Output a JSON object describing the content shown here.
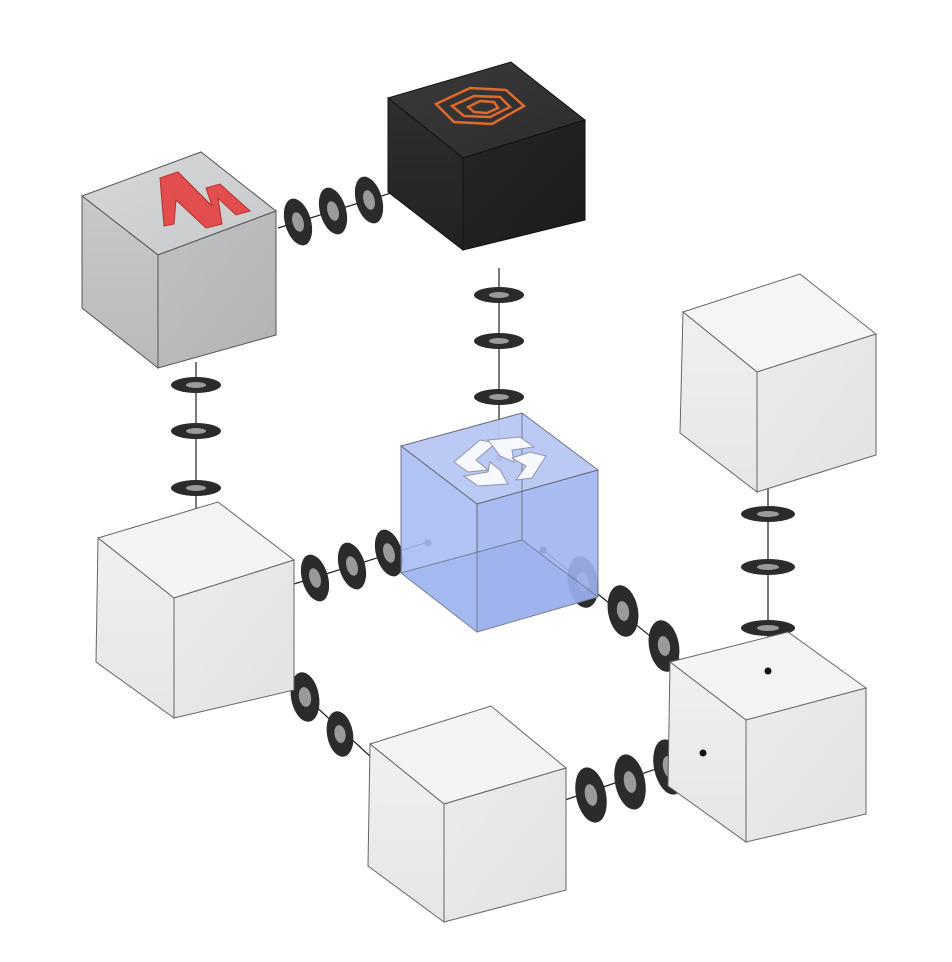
{
  "diagram": {
    "cubes": [
      {
        "id": "grey-logo-cube",
        "style": "grey",
        "logo": "red-v-logo-icon"
      },
      {
        "id": "black-logo-cube",
        "style": "black",
        "logo": "orange-hexagon-logo-icon"
      },
      {
        "id": "blue-center-cube",
        "style": "blue-transparent",
        "logo": "white-chain-logo-icon"
      },
      {
        "id": "white-cube-top-right",
        "style": "white"
      },
      {
        "id": "white-cube-mid-left",
        "style": "white"
      },
      {
        "id": "white-cube-bottom-center",
        "style": "white"
      },
      {
        "id": "white-cube-bottom-right",
        "style": "white"
      }
    ],
    "links": [
      {
        "from": "grey-logo-cube",
        "to": "black-logo-cube"
      },
      {
        "from": "grey-logo-cube",
        "to": "white-cube-mid-left"
      },
      {
        "from": "black-logo-cube",
        "to": "blue-center-cube"
      },
      {
        "from": "white-cube-mid-left",
        "to": "blue-center-cube"
      },
      {
        "from": "blue-center-cube",
        "to": "white-cube-bottom-right"
      },
      {
        "from": "white-cube-top-right",
        "to": "white-cube-bottom-right"
      },
      {
        "from": "white-cube-mid-left",
        "to": "white-cube-bottom-center"
      },
      {
        "from": "white-cube-bottom-center",
        "to": "white-cube-bottom-right"
      }
    ],
    "colors": {
      "white_top": "#f4f4f4",
      "white_left": "#ededed",
      "white_right": "#e7e7e7",
      "grey_top": "#cfd0d2",
      "grey_left": "#c3c4c6",
      "grey_right": "#bcbdbf",
      "black_face": "#262626",
      "blue_face": "#a9bdf2",
      "red_logo": "#e24e4e",
      "orange_logo": "#e06a2c",
      "link_dark": "#2a2a2a",
      "link_grey": "#9a9a9a"
    }
  }
}
